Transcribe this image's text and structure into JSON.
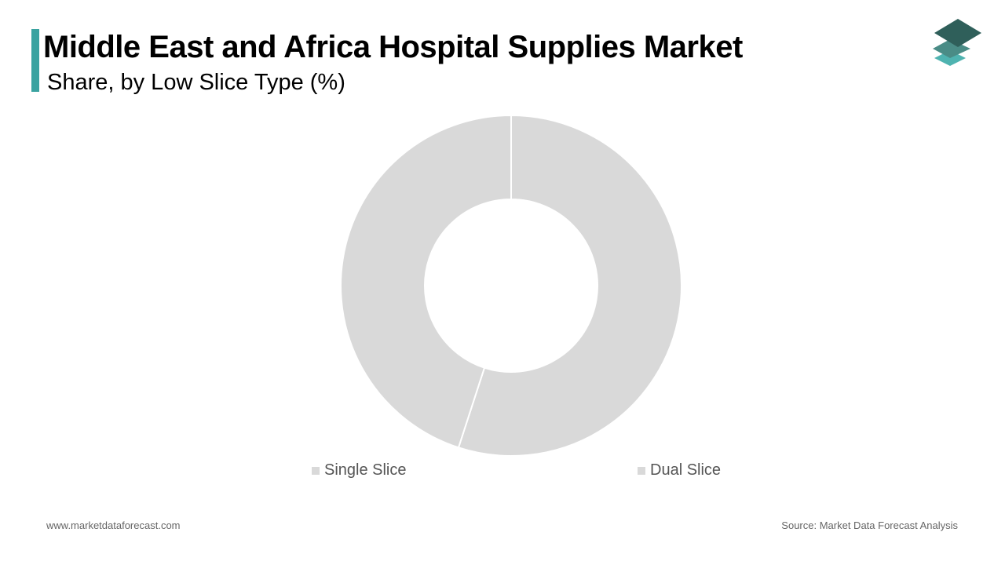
{
  "header": {
    "title": "Middle East and Africa Hospital Supplies Market",
    "subtitle": "Share, by Low Slice Type (%)",
    "accent_color": "#3aa3a0"
  },
  "logo": {
    "icon": "stacked-layers-logo-icon",
    "colors": [
      "#2f5f5a",
      "#4a8c86",
      "#4fb3b0"
    ]
  },
  "chart_data": {
    "type": "pie",
    "variant": "donut",
    "categories": [
      "Single Slice",
      "Dual Slice"
    ],
    "values": [
      45,
      55
    ],
    "colors": [
      "#d9d9d9",
      "#d9d9d9"
    ],
    "legend_position": "bottom",
    "title": "Middle East and Africa Hospital Supplies Market",
    "subtitle": "Share, by Low Slice Type (%)"
  },
  "footer": {
    "website": "www.marketdataforecast.com",
    "source": "Source: Market Data Forecast Analysis"
  }
}
